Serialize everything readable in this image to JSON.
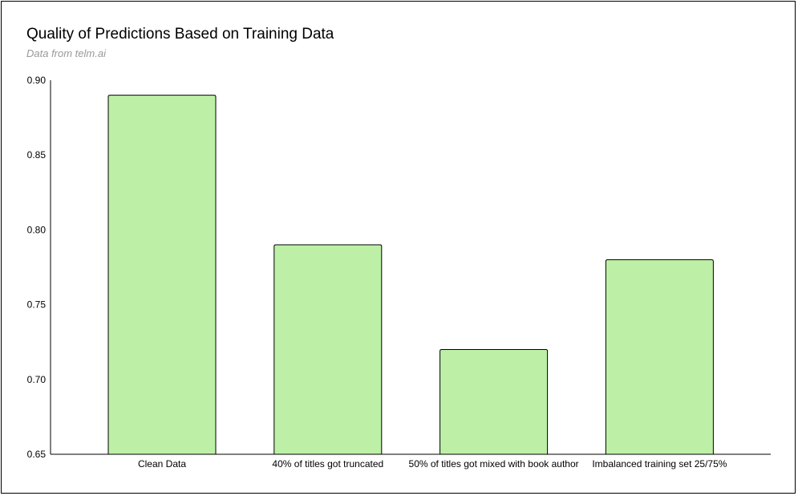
{
  "chart_data": {
    "type": "bar",
    "title": "Quality of Predictions Based on Training Data",
    "subtitle": "Data from telm.ai",
    "categories": [
      "Clean Data",
      "40% of titles got truncated",
      "50% of titles got mixed with book author",
      "Imbalanced training set 25/75%"
    ],
    "values": [
      0.89,
      0.79,
      0.72,
      0.78
    ],
    "ylim": [
      0.65,
      0.9
    ],
    "yticks": [
      "0.90",
      "0.85",
      "0.80",
      "0.75",
      "0.70",
      "0.65"
    ],
    "xlabel": "",
    "ylabel": "",
    "grid": false,
    "legend": "none",
    "colors": {
      "bar_fill": "#bdf0a6",
      "bar_stroke": "#000000",
      "axis": "#000000",
      "subtitle": "#999999"
    }
  }
}
